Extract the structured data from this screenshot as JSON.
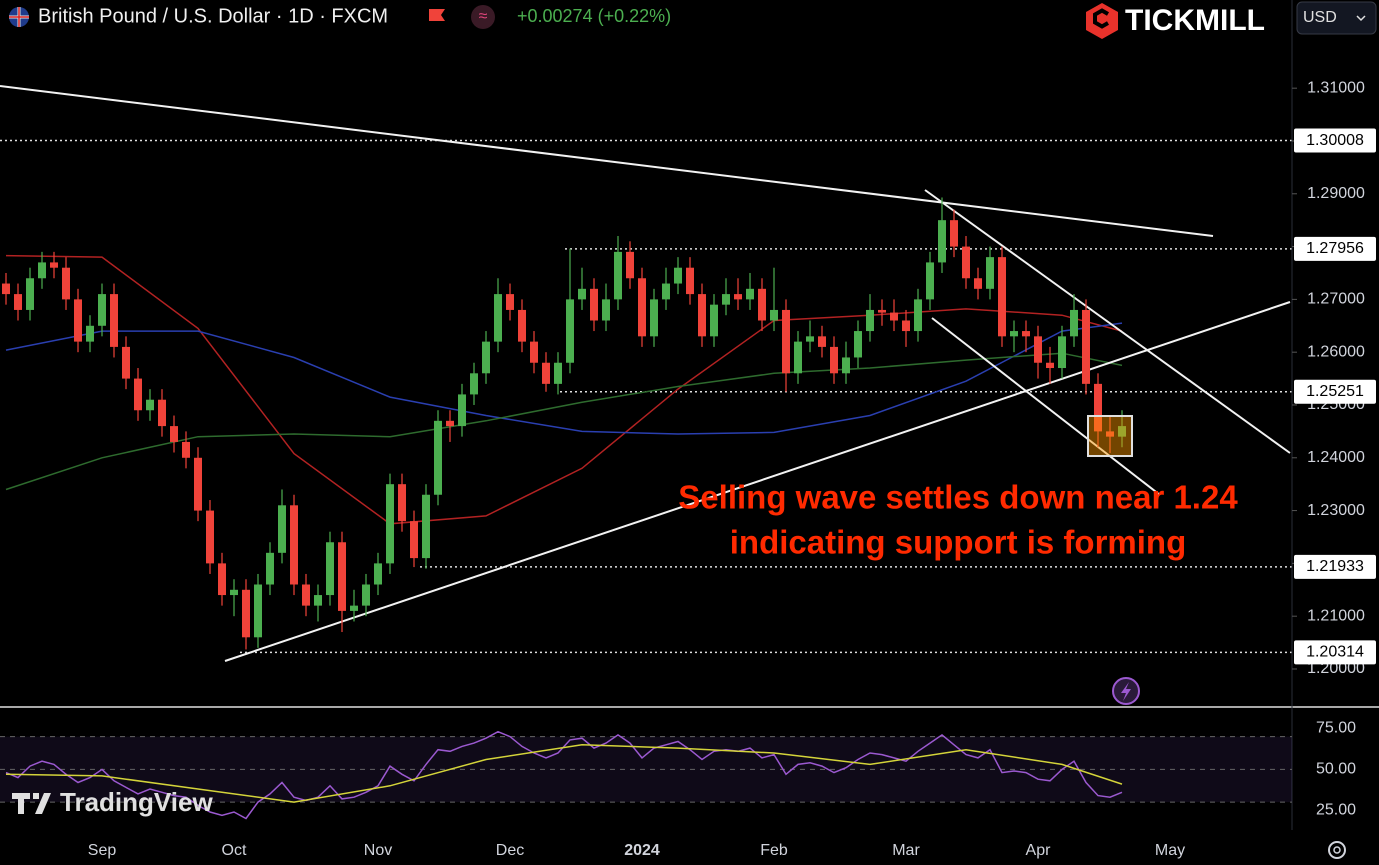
{
  "header": {
    "symbol": "British Pound / U.S. Dollar · 1D · FXCM",
    "change": "+0.00274 (+0.22%)",
    "brand": "TICKMILL",
    "currency": "USD",
    "watermark": "TradingView"
  },
  "chart_data": [
    {
      "type": "candlestick",
      "categories": [
        null,
        null,
        null,
        null,
        null,
        null,
        null,
        null,
        "Sep",
        null,
        null,
        null,
        null,
        null,
        null,
        null,
        null,
        null,
        null,
        "Oct",
        null,
        null,
        null,
        null,
        null,
        null,
        null,
        null,
        null,
        null,
        null,
        "Nov",
        null,
        null,
        null,
        null,
        null,
        null,
        null,
        null,
        null,
        null,
        "Dec",
        null,
        null,
        null,
        null,
        null,
        null,
        null,
        null,
        null,
        null,
        "2024",
        null,
        null,
        null,
        null,
        null,
        null,
        null,
        null,
        null,
        null,
        "Feb",
        null,
        null,
        null,
        null,
        null,
        null,
        null,
        null,
        null,
        null,
        "Mar",
        null,
        null,
        null,
        null,
        null,
        null,
        null,
        null,
        null,
        null,
        "Apr",
        null,
        null,
        null,
        null,
        null,
        null,
        null,
        null,
        null,
        null,
        "May"
      ],
      "ohlc": [
        [
          1.273,
          1.275,
          1.269,
          1.271
        ],
        [
          1.271,
          1.273,
          1.266,
          1.268
        ],
        [
          1.268,
          1.276,
          1.266,
          1.274
        ],
        [
          1.274,
          1.279,
          1.272,
          1.277
        ],
        [
          1.277,
          1.279,
          1.274,
          1.276
        ],
        [
          1.276,
          1.278,
          1.268,
          1.27
        ],
        [
          1.27,
          1.272,
          1.26,
          1.262
        ],
        [
          1.262,
          1.267,
          1.26,
          1.265
        ],
        [
          1.265,
          1.273,
          1.263,
          1.271
        ],
        [
          1.271,
          1.273,
          1.259,
          1.261
        ],
        [
          1.261,
          1.263,
          1.253,
          1.255
        ],
        [
          1.255,
          1.257,
          1.247,
          1.249
        ],
        [
          1.249,
          1.253,
          1.247,
          1.251
        ],
        [
          1.251,
          1.253,
          1.244,
          1.246
        ],
        [
          1.246,
          1.248,
          1.241,
          1.243
        ],
        [
          1.243,
          1.245,
          1.238,
          1.24
        ],
        [
          1.24,
          1.242,
          1.228,
          1.23
        ],
        [
          1.23,
          1.232,
          1.218,
          1.22
        ],
        [
          1.22,
          1.222,
          1.212,
          1.214
        ],
        [
          1.214,
          1.217,
          1.21,
          1.215
        ],
        [
          1.215,
          1.217,
          1.2037,
          1.206
        ],
        [
          1.206,
          1.218,
          1.204,
          1.216
        ],
        [
          1.216,
          1.224,
          1.214,
          1.222
        ],
        [
          1.222,
          1.234,
          1.22,
          1.231
        ],
        [
          1.231,
          1.233,
          1.214,
          1.216
        ],
        [
          1.216,
          1.218,
          1.21,
          1.212
        ],
        [
          1.212,
          1.216,
          1.209,
          1.214
        ],
        [
          1.214,
          1.226,
          1.212,
          1.224
        ],
        [
          1.224,
          1.226,
          1.207,
          1.211
        ],
        [
          1.211,
          1.215,
          1.209,
          1.212
        ],
        [
          1.212,
          1.218,
          1.21,
          1.216
        ],
        [
          1.216,
          1.222,
          1.214,
          1.22
        ],
        [
          1.22,
          1.237,
          1.218,
          1.235
        ],
        [
          1.235,
          1.237,
          1.226,
          1.228
        ],
        [
          1.228,
          1.23,
          1.2193,
          1.221
        ],
        [
          1.221,
          1.235,
          1.219,
          1.233
        ],
        [
          1.233,
          1.249,
          1.231,
          1.247
        ],
        [
          1.247,
          1.249,
          1.243,
          1.246
        ],
        [
          1.246,
          1.254,
          1.244,
          1.252
        ],
        [
          1.252,
          1.258,
          1.25,
          1.256
        ],
        [
          1.256,
          1.264,
          1.254,
          1.262
        ],
        [
          1.262,
          1.274,
          1.26,
          1.271
        ],
        [
          1.271,
          1.273,
          1.266,
          1.268
        ],
        [
          1.268,
          1.27,
          1.26,
          1.262
        ],
        [
          1.262,
          1.264,
          1.256,
          1.258
        ],
        [
          1.258,
          1.26,
          1.2525,
          1.254
        ],
        [
          1.254,
          1.26,
          1.252,
          1.258
        ],
        [
          1.258,
          1.2796,
          1.256,
          1.27
        ],
        [
          1.27,
          1.276,
          1.268,
          1.272
        ],
        [
          1.272,
          1.274,
          1.264,
          1.266
        ],
        [
          1.266,
          1.273,
          1.264,
          1.27
        ],
        [
          1.27,
          1.282,
          1.268,
          1.279
        ],
        [
          1.279,
          1.281,
          1.272,
          1.274
        ],
        [
          1.274,
          1.276,
          1.261,
          1.263
        ],
        [
          1.263,
          1.272,
          1.261,
          1.27
        ],
        [
          1.27,
          1.276,
          1.268,
          1.273
        ],
        [
          1.273,
          1.278,
          1.271,
          1.276
        ],
        [
          1.276,
          1.278,
          1.269,
          1.271
        ],
        [
          1.271,
          1.273,
          1.261,
          1.263
        ],
        [
          1.263,
          1.271,
          1.261,
          1.269
        ],
        [
          1.269,
          1.274,
          1.267,
          1.271
        ],
        [
          1.271,
          1.274,
          1.268,
          1.27
        ],
        [
          1.27,
          1.275,
          1.268,
          1.272
        ],
        [
          1.272,
          1.274,
          1.264,
          1.266
        ],
        [
          1.266,
          1.276,
          1.264,
          1.268
        ],
        [
          1.268,
          1.27,
          1.2525,
          1.256
        ],
        [
          1.256,
          1.264,
          1.254,
          1.262
        ],
        [
          1.262,
          1.266,
          1.26,
          1.263
        ],
        [
          1.263,
          1.265,
          1.259,
          1.261
        ],
        [
          1.261,
          1.263,
          1.254,
          1.256
        ],
        [
          1.256,
          1.262,
          1.254,
          1.259
        ],
        [
          1.259,
          1.266,
          1.257,
          1.264
        ],
        [
          1.264,
          1.271,
          1.262,
          1.268
        ],
        [
          1.268,
          1.27,
          1.265,
          1.2675
        ],
        [
          1.2675,
          1.27,
          1.264,
          1.266
        ],
        [
          1.266,
          1.268,
          1.261,
          1.264
        ],
        [
          1.264,
          1.272,
          1.262,
          1.27
        ],
        [
          1.27,
          1.279,
          1.268,
          1.277
        ],
        [
          1.277,
          1.2893,
          1.275,
          1.285
        ],
        [
          1.285,
          1.287,
          1.278,
          1.28
        ],
        [
          1.28,
          1.282,
          1.272,
          1.274
        ],
        [
          1.274,
          1.276,
          1.27,
          1.272
        ],
        [
          1.272,
          1.28,
          1.27,
          1.278
        ],
        [
          1.278,
          1.28,
          1.261,
          1.263
        ],
        [
          1.263,
          1.266,
          1.26,
          1.264
        ],
        [
          1.264,
          1.266,
          1.26,
          1.263
        ],
        [
          1.263,
          1.265,
          1.255,
          1.258
        ],
        [
          1.258,
          1.261,
          1.254,
          1.257
        ],
        [
          1.257,
          1.265,
          1.255,
          1.263
        ],
        [
          1.263,
          1.271,
          1.261,
          1.268
        ],
        [
          1.268,
          1.27,
          1.252,
          1.254
        ],
        [
          1.254,
          1.256,
          1.242,
          1.245
        ],
        [
          1.245,
          1.248,
          1.2409,
          1.244
        ],
        [
          1.244,
          1.249,
          1.242,
          1.246
        ],
        null,
        null,
        null,
        null
      ],
      "up_color": "#4caf50",
      "down_color": "#f0433a",
      "moving_averages": [
        {
          "color": "#b22222",
          "x": [
            0,
            8,
            16,
            24,
            32,
            40,
            48,
            56,
            64,
            72,
            80,
            88,
            93
          ],
          "values": [
            1.2783,
            1.278,
            1.2645,
            1.2408,
            1.2275,
            1.229,
            1.238,
            1.253,
            1.266,
            1.267,
            1.2682,
            1.267,
            1.264
          ]
        },
        {
          "color": "#2a3fb0",
          "x": [
            0,
            8,
            16,
            24,
            32,
            40,
            48,
            56,
            64,
            72,
            80,
            88,
            93
          ],
          "values": [
            1.2604,
            1.264,
            1.264,
            1.259,
            1.2515,
            1.248,
            1.245,
            1.2445,
            1.2448,
            1.248,
            1.2545,
            1.264,
            1.2655
          ]
        },
        {
          "color": "#2e6b2e",
          "x": [
            0,
            8,
            16,
            24,
            32,
            40,
            48,
            56,
            64,
            72,
            80,
            88,
            93
          ],
          "values": [
            1.234,
            1.24,
            1.244,
            1.2445,
            1.244,
            1.247,
            1.2505,
            1.2535,
            1.256,
            1.257,
            1.2585,
            1.2598,
            1.2575
          ]
        }
      ],
      "ylim": [
        1.1928,
        1.3267
      ],
      "yticks": [
        {
          "value": 1.31,
          "label": "1.31000"
        },
        {
          "value": 1.3,
          "label": "1.30000"
        },
        {
          "value": 1.29,
          "label": "1.29000"
        },
        {
          "value": 1.28,
          "label": "1.28000"
        },
        {
          "value": 1.27,
          "label": "1.27000"
        },
        {
          "value": 1.26,
          "label": "1.26000"
        },
        {
          "value": 1.25,
          "label": "1.25000"
        },
        {
          "value": 1.24,
          "label": "1.24000"
        },
        {
          "value": 1.23,
          "label": "1.23000"
        },
        {
          "value": 1.22,
          "label": "1.22000"
        },
        {
          "value": 1.21,
          "label": "1.21000"
        },
        {
          "value": 1.2,
          "label": "1.20000"
        }
      ],
      "price_levels": [
        1.30008,
        1.27956,
        1.25251,
        1.21933,
        1.20314
      ],
      "annotations": [
        "Selling wave settles down near 1.24",
        "indicating support is forming"
      ]
    },
    {
      "type": "line",
      "series": [
        {
          "color": "#9b59d0",
          "values": [
            48,
            45,
            52,
            55,
            53,
            47,
            42,
            45,
            50,
            43,
            39,
            35,
            38,
            36,
            34,
            33,
            28,
            24,
            22,
            24,
            20,
            30,
            35,
            42,
            33,
            31,
            33,
            40,
            32,
            33,
            36,
            40,
            52,
            47,
            43,
            53,
            62,
            61,
            64,
            66,
            69,
            73,
            70,
            64,
            60,
            57,
            60,
            68,
            69,
            63,
            66,
            71,
            66,
            57,
            63,
            65,
            67,
            62,
            56,
            61,
            62,
            61,
            63,
            57,
            59,
            47,
            53,
            54,
            52,
            48,
            51,
            56,
            60,
            59,
            57,
            55,
            61,
            66,
            71,
            65,
            59,
            57,
            62,
            48,
            49,
            48,
            44,
            43,
            50,
            55,
            42,
            34,
            33,
            36
          ]
        },
        {
          "color": "#d4d43a",
          "x": [
            0,
            8,
            16,
            24,
            32,
            40,
            48,
            56,
            64,
            72,
            80,
            88,
            93
          ],
          "values": [
            47,
            46,
            38,
            30,
            40,
            56,
            65,
            63,
            60,
            53,
            62,
            53,
            41
          ]
        }
      ],
      "band": [
        30,
        70
      ],
      "ylim": [
        13,
        85
      ],
      "yticks": [
        {
          "value": 75,
          "label": "75.00"
        },
        {
          "value": 50,
          "label": "50.00"
        },
        {
          "value": 25,
          "label": "25.00"
        }
      ]
    }
  ]
}
